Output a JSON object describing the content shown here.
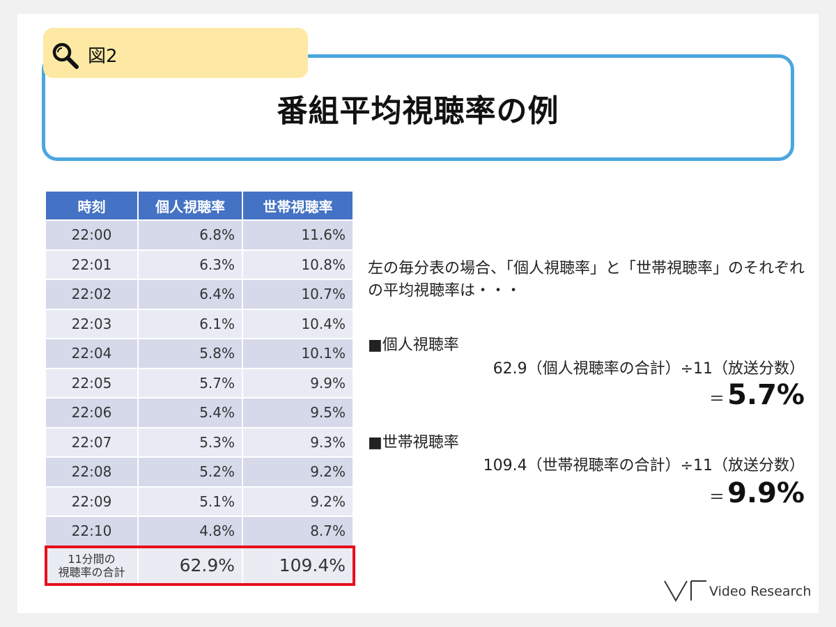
{
  "figure": {
    "label": "図2",
    "icon": "search-icon",
    "tab_color": "#fde9a4"
  },
  "title": "番組平均視聴率の例",
  "colors": {
    "frame": "#4ba6e0",
    "header": "#4472c4",
    "highlight": "#e8101b"
  },
  "table": {
    "headers": [
      "時刻",
      "個人視聴率",
      "世帯視聴率"
    ],
    "rows": [
      [
        "22:00",
        "6.8%",
        "11.6%"
      ],
      [
        "22:01",
        "6.3%",
        "10.8%"
      ],
      [
        "22:02",
        "6.4%",
        "10.7%"
      ],
      [
        "22:03",
        "6.1%",
        "10.4%"
      ],
      [
        "22:04",
        "5.8%",
        "10.1%"
      ],
      [
        "22:05",
        "5.7%",
        "9.9%"
      ],
      [
        "22:06",
        "5.4%",
        "9.5%"
      ],
      [
        "22:07",
        "5.3%",
        "9.3%"
      ],
      [
        "22:08",
        "5.2%",
        "9.2%"
      ],
      [
        "22:09",
        "5.1%",
        "9.2%"
      ],
      [
        "22:10",
        "4.8%",
        "8.7%"
      ]
    ],
    "total": {
      "label_line1": "11分間の",
      "label_line2": "視聴率の合計",
      "personal": "62.9%",
      "household": "109.4%"
    }
  },
  "description": "左の毎分表の場合、「個人視聴率」と「世帯視聴率」のそれぞれの平均視聴率は・・・",
  "personal": {
    "heading": "■個人視聴率",
    "calc": "62.9（個人視聴率の合計）÷11（放送分数）",
    "equals": "＝",
    "result": "5.7%"
  },
  "household": {
    "heading": "■世帯視聴率",
    "calc": "109.4（世帯視聴率の合計）÷11（放送分数）",
    "equals": "＝",
    "result": "9.9%"
  },
  "logo": {
    "text": "Video Research",
    "icon": "video-research-logo-icon"
  }
}
